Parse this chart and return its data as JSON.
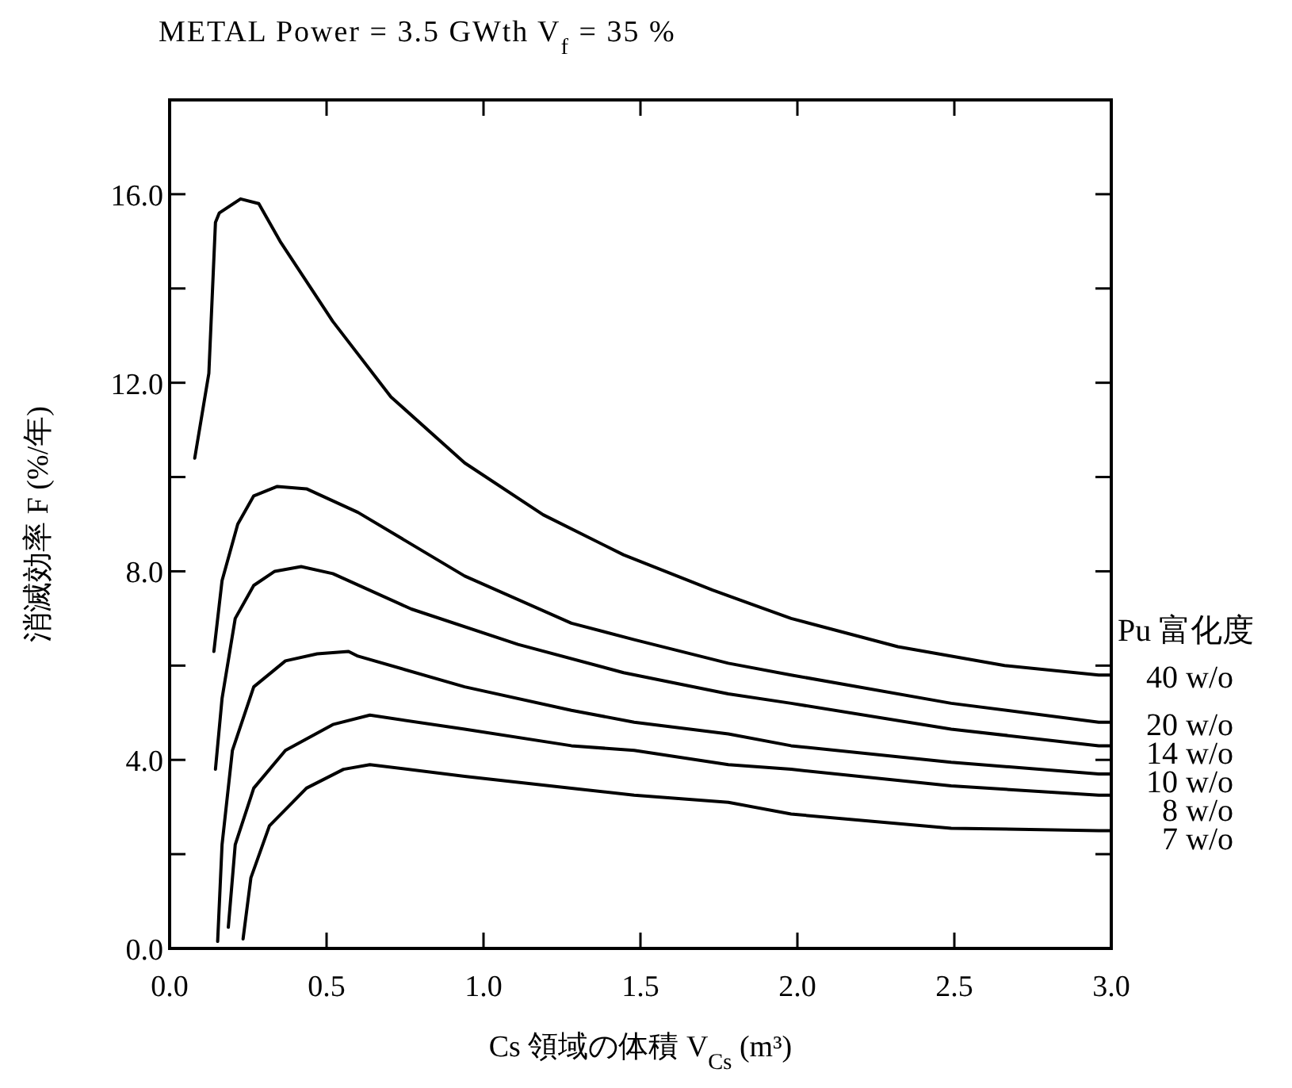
{
  "chart_data": {
    "type": "line",
    "title": "METAL   Power = 3.5 GWth   V$_{f}$ = 35 %",
    "xlabel": "Cs 領域の体積 V$_{Cs}$ (m³)",
    "ylabel": "消滅効率 F (%/年)",
    "legend_title": "Pu 富化度",
    "xlim": [
      0,
      3.0
    ],
    "ylim": [
      0,
      18
    ],
    "xticks": [
      {
        "value": 0,
        "label": "0.0"
      },
      {
        "value": 0.5,
        "label": "0.5"
      },
      {
        "value": 1,
        "label": "1.0"
      },
      {
        "value": 1.5,
        "label": "1.5"
      },
      {
        "value": 2,
        "label": "2.0"
      },
      {
        "value": 2.5,
        "label": "2.5"
      },
      {
        "value": 3,
        "label": "3.0"
      }
    ],
    "yticks": [
      {
        "value": 0,
        "label": "0.0"
      },
      {
        "value": 2,
        "label": null
      },
      {
        "value": 4,
        "label": "4.0"
      },
      {
        "value": 6,
        "label": null
      },
      {
        "value": 8,
        "label": "8.0"
      },
      {
        "value": 10,
        "label": null
      },
      {
        "value": 12,
        "label": "12.0"
      },
      {
        "value": 14,
        "label": null
      },
      {
        "value": 16,
        "label": "16.0"
      },
      {
        "value": 18,
        "label": null
      }
    ],
    "grid": false,
    "legend": "right",
    "marker": "none",
    "line_style": "solid",
    "series": [
      {
        "name": "40 w/o",
        "color": "#000000",
        "x": [
          0.08,
          0.125,
          0.146,
          0.158,
          0.226,
          0.284,
          0.352,
          0.52,
          0.705,
          0.94,
          1.19,
          1.446,
          1.73,
          1.98,
          2.32,
          2.66,
          2.96,
          3.0
        ],
        "values": [
          10.4,
          12.2,
          15.4,
          15.6,
          15.9,
          15.8,
          15.0,
          13.3,
          11.7,
          10.3,
          9.2,
          8.35,
          7.6,
          7.0,
          6.4,
          6.0,
          5.8,
          5.8
        ]
      },
      {
        "name": "20 w/o",
        "color": "#000000",
        "x": [
          0.141,
          0.167,
          0.217,
          0.268,
          0.343,
          0.436,
          0.6,
          0.94,
          1.28,
          1.48,
          1.78,
          1.98,
          2.49,
          2.96,
          3.0
        ],
        "values": [
          6.3,
          7.8,
          9.0,
          9.6,
          9.8,
          9.75,
          9.25,
          7.9,
          6.9,
          6.55,
          6.05,
          5.8,
          5.2,
          4.8,
          4.8
        ]
      },
      {
        "name": "14 w/o",
        "color": "#000000",
        "x": [
          0.146,
          0.167,
          0.209,
          0.268,
          0.335,
          0.419,
          0.52,
          0.77,
          1.11,
          1.446,
          1.78,
          1.98,
          2.49,
          2.96,
          3.0
        ],
        "values": [
          3.8,
          5.3,
          7.0,
          7.7,
          8.0,
          8.1,
          7.95,
          7.2,
          6.45,
          5.85,
          5.4,
          5.2,
          4.65,
          4.3,
          4.3
        ]
      },
      {
        "name": "10 w/o",
        "color": "#000000",
        "x": [
          0.153,
          0.167,
          0.2,
          0.268,
          0.369,
          0.47,
          0.57,
          0.6,
          0.94,
          1.28,
          1.48,
          1.78,
          1.98,
          2.49,
          2.96,
          3.0
        ],
        "values": [
          0.15,
          2.2,
          4.2,
          5.55,
          6.1,
          6.25,
          6.3,
          6.2,
          5.55,
          5.05,
          4.8,
          4.55,
          4.3,
          3.95,
          3.7,
          3.7
        ]
      },
      {
        "name": "8 w/o",
        "color": "#000000",
        "x": [
          0.187,
          0.209,
          0.268,
          0.369,
          0.52,
          0.638,
          0.94,
          1.28,
          1.48,
          1.78,
          1.98,
          2.49,
          2.96,
          3.0
        ],
        "values": [
          0.45,
          2.2,
          3.4,
          4.2,
          4.75,
          4.95,
          4.65,
          4.3,
          4.2,
          3.9,
          3.8,
          3.45,
          3.25,
          3.25
        ]
      },
      {
        "name": "7 w/o",
        "color": "#000000",
        "x": [
          0.234,
          0.259,
          0.318,
          0.436,
          0.554,
          0.638,
          0.94,
          1.28,
          1.48,
          1.78,
          1.98,
          2.49,
          2.96,
          3.0
        ],
        "values": [
          0.2,
          1.5,
          2.6,
          3.4,
          3.8,
          3.9,
          3.65,
          3.4,
          3.25,
          3.1,
          2.85,
          2.55,
          2.5,
          2.5
        ]
      }
    ]
  }
}
